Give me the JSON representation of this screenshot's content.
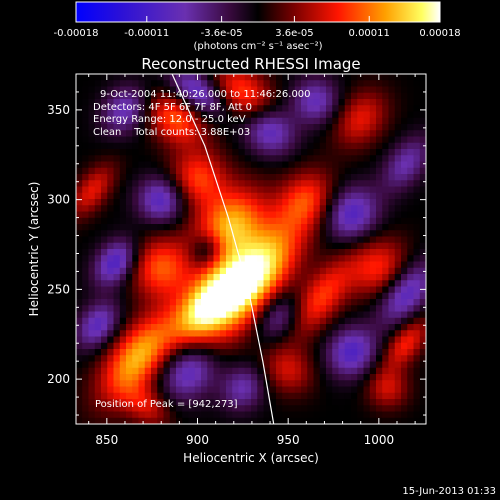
{
  "chart_data": {
    "type": "heatmap",
    "title": "Reconstructed RHESSI Image",
    "xlabel": "Heliocentric X (arcsec)",
    "ylabel": "Heliocentric Y (arcsec)",
    "xlim": [
      833,
      1026
    ],
    "ylim": [
      175,
      370
    ],
    "xticks": [
      850,
      900,
      950,
      1000
    ],
    "yticks": [
      200,
      250,
      300,
      350
    ],
    "colorbar": {
      "ticks": [
        "-0.00018",
        "-0.00011",
        "-3.6e-05",
        "3.6e-05",
        "0.00011",
        "0.00018"
      ],
      "range": [
        -0.00018,
        0.00018
      ],
      "unit_label": "(photons cm⁻² s⁻¹ asec⁻²)"
    },
    "annotations": [
      "9-Oct-2004 11:40:26.000 to 11:46:26.000",
      "Detectors: 4F 5F 6F 7F 8F, Att 0",
      "Energy Range: 12.0 - 25.0 keV",
      "Clean    Total counts: 3.88E+03"
    ],
    "peak_label": "Position of Peak = [942,273]",
    "peak": [
      942,
      273
    ],
    "limb_line": [
      [
        886,
        370
      ],
      [
        904,
        330
      ],
      [
        917,
        290
      ],
      [
        928,
        250
      ],
      [
        936,
        210
      ],
      [
        942,
        175
      ]
    ],
    "blobs": [
      {
        "x": 930,
        "y": 255,
        "amp": 1.0,
        "sx": 11,
        "sy": 26
      },
      {
        "x": 918,
        "y": 285,
        "amp": 0.75,
        "sx": 12,
        "sy": 16
      },
      {
        "x": 905,
        "y": 242,
        "amp": 0.8,
        "sx": 9,
        "sy": 18
      },
      {
        "x": 900,
        "y": 312,
        "amp": 0.5,
        "sx": 11,
        "sy": 11
      },
      {
        "x": 880,
        "y": 262,
        "amp": 0.55,
        "sx": 12,
        "sy": 12
      },
      {
        "x": 867,
        "y": 212,
        "amp": 0.75,
        "sx": 10,
        "sy": 20
      },
      {
        "x": 888,
        "y": 345,
        "amp": 0.55,
        "sx": 12,
        "sy": 9
      },
      {
        "x": 925,
        "y": 360,
        "amp": 0.5,
        "sx": 13,
        "sy": 9
      },
      {
        "x": 960,
        "y": 300,
        "amp": 0.45,
        "sx": 10,
        "sy": 12
      },
      {
        "x": 968,
        "y": 245,
        "amp": 0.5,
        "sx": 8,
        "sy": 18
      },
      {
        "x": 1000,
        "y": 262,
        "amp": 0.45,
        "sx": 11,
        "sy": 12
      },
      {
        "x": 990,
        "y": 345,
        "amp": 0.4,
        "sx": 9,
        "sy": 12
      },
      {
        "x": 1015,
        "y": 220,
        "amp": 0.45,
        "sx": 6,
        "sy": 12
      },
      {
        "x": 842,
        "y": 305,
        "amp": 0.4,
        "sx": 6,
        "sy": 12
      },
      {
        "x": 950,
        "y": 205,
        "amp": 0.35,
        "sx": 10,
        "sy": 9
      },
      {
        "x": 872,
        "y": 185,
        "amp": 0.35,
        "sx": 10,
        "sy": 7
      },
      {
        "x": 1005,
        "y": 195,
        "amp": 0.35,
        "sx": 8,
        "sy": 8
      },
      {
        "x": 900,
        "y": 360,
        "amp": -0.55,
        "sx": 12,
        "sy": 7
      },
      {
        "x": 940,
        "y": 338,
        "amp": -0.5,
        "sx": 10,
        "sy": 9
      },
      {
        "x": 880,
        "y": 300,
        "amp": -0.55,
        "sx": 9,
        "sy": 9
      },
      {
        "x": 855,
        "y": 265,
        "amp": -0.6,
        "sx": 7,
        "sy": 10
      },
      {
        "x": 905,
        "y": 272,
        "amp": -0.4,
        "sx": 6,
        "sy": 7
      },
      {
        "x": 985,
        "y": 292,
        "amp": -0.55,
        "sx": 10,
        "sy": 11
      },
      {
        "x": 945,
        "y": 235,
        "amp": -0.4,
        "sx": 8,
        "sy": 10
      },
      {
        "x": 1015,
        "y": 248,
        "amp": -0.55,
        "sx": 8,
        "sy": 14
      },
      {
        "x": 985,
        "y": 215,
        "amp": -0.55,
        "sx": 9,
        "sy": 10
      },
      {
        "x": 895,
        "y": 205,
        "amp": -0.55,
        "sx": 10,
        "sy": 12
      },
      {
        "x": 845,
        "y": 230,
        "amp": -0.5,
        "sx": 7,
        "sy": 10
      },
      {
        "x": 965,
        "y": 355,
        "amp": -0.45,
        "sx": 9,
        "sy": 9
      },
      {
        "x": 1015,
        "y": 320,
        "amp": -0.4,
        "sx": 7,
        "sy": 12
      },
      {
        "x": 925,
        "y": 195,
        "amp": -0.4,
        "sx": 8,
        "sy": 9
      },
      {
        "x": 860,
        "y": 350,
        "amp": -0.45,
        "sx": 8,
        "sy": 10
      }
    ]
  },
  "footer": {
    "date_stamp": "15-Jun-2013 01:33"
  }
}
